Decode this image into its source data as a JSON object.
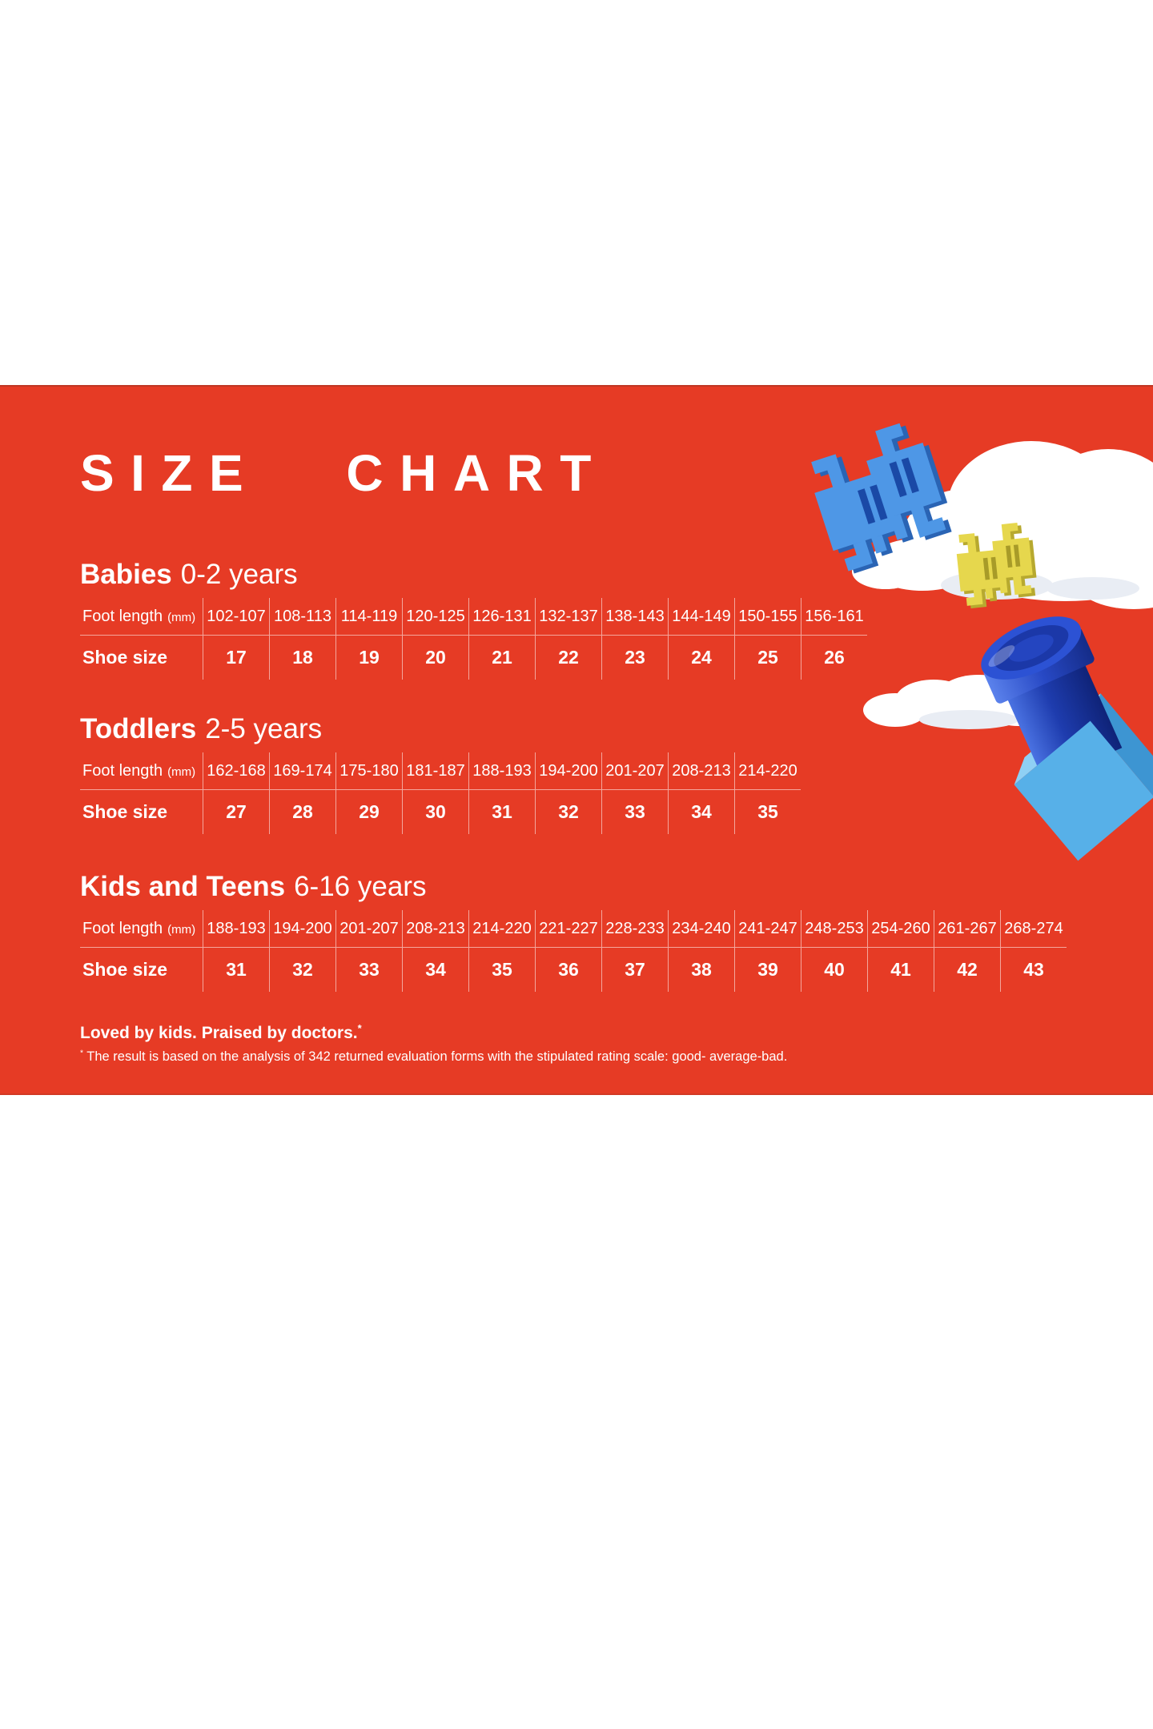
{
  "page": {
    "title": "SIZE CHART"
  },
  "colors": {
    "panel_red": "#e63b25",
    "text_white": "#ffffff",
    "table_line": "rgba(255,255,255,0.55)",
    "cloud_white": "#ffffff",
    "cloud_shade": "#e9edf4",
    "invader_blue": "#4e97e6",
    "invader_blue_shadow": "#2a64b4",
    "invader_blue_slot": "#1a49a6",
    "invader_yellow": "#e6d74d",
    "invader_yellow_shadow": "#b7a92f",
    "invader_yellow_slot": "#a89b28",
    "cylinder_light": "#4a72e2",
    "cylinder_mid": "#1e3cae",
    "cylinder_dark": "#0f2378",
    "rim_light": "#5b82ec",
    "rim_mid": "#2748c4",
    "rim_dark": "#152c88",
    "cap_face": "#2c52d4",
    "cap_ring": "#1b38a8",
    "cap_center": "#2445c0",
    "cube_front": "#57b0e8",
    "cube_side": "#3d95d2",
    "cube_top": "#8fd0f4"
  },
  "sections": [
    {
      "name": "Babies",
      "age_range": "0-2 years",
      "foot_length_label": "Foot length",
      "foot_length_unit": "(mm)",
      "shoe_size_label": "Shoe size",
      "foot_lengths": [
        "102-107",
        "108-113",
        "114-119",
        "120-125",
        "126-131",
        "132-137",
        "138-143",
        "144-149",
        "150-155",
        "156-161"
      ],
      "shoe_sizes": [
        "17",
        "18",
        "19",
        "20",
        "21",
        "22",
        "23",
        "24",
        "25",
        "26"
      ]
    },
    {
      "name": "Toddlers",
      "age_range": "2-5 years",
      "foot_length_label": "Foot length",
      "foot_length_unit": "(mm)",
      "shoe_size_label": "Shoe size",
      "foot_lengths": [
        "162-168",
        "169-174",
        "175-180",
        "181-187",
        "188-193",
        "194-200",
        "201-207",
        "208-213",
        "214-220"
      ],
      "shoe_sizes": [
        "27",
        "28",
        "29",
        "30",
        "31",
        "32",
        "33",
        "34",
        "35"
      ]
    },
    {
      "name": "Kids and Teens",
      "age_range": "6-16 years",
      "foot_length_label": "Foot length",
      "foot_length_unit": "(mm)",
      "shoe_size_label": "Shoe size",
      "foot_lengths": [
        "188-193",
        "194-200",
        "201-207",
        "208-213",
        "214-220",
        "221-227",
        "228-233",
        "234-240",
        "241-247",
        "248-253",
        "254-260",
        "261-267",
        "268-274"
      ],
      "shoe_sizes": [
        "31",
        "32",
        "33",
        "34",
        "35",
        "36",
        "37",
        "38",
        "39",
        "40",
        "41",
        "42",
        "43"
      ]
    }
  ],
  "footer": {
    "headline": "Loved by kids. Praised by doctors.",
    "asterisk": "*",
    "footnote": "The result is based on the analysis of 342 returned evaluation forms with the stipulated rating scale: good- average-bad."
  },
  "decorations": {
    "icons": [
      "cloud-icon",
      "pixel-invader-blue-icon",
      "pixel-invader-yellow-icon",
      "small-cloud-icon",
      "toy-block-icon"
    ]
  }
}
